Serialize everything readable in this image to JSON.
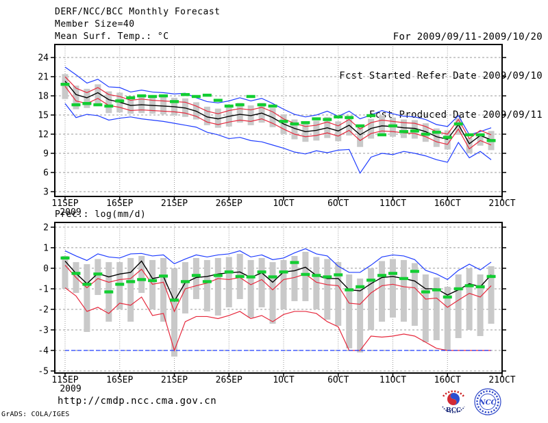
{
  "header": {
    "title": "DERF/NCC/BCC Monthly Forecast",
    "member_size": "Member Size=40",
    "for_range": "For 2009/09/11-2009/10/20",
    "refer_date": "Fcst Started Refer Date 2009/09/10",
    "produced_date": "Fcst Produced Date 2009/09/11"
  },
  "footer": {
    "url": "http://cmdp.ncc.cma.gov.cn",
    "grads_credit": "GrADS: COLA/IGES",
    "logos": [
      {
        "name": "bcc-logo",
        "label": "BCC"
      },
      {
        "name": "ncc-logo",
        "label": "NCC"
      }
    ]
  },
  "colors": {
    "blue": "#1e3cff",
    "red": "#e6283c",
    "green": "#12cd32",
    "black": "#000000",
    "bar": "#c9c9c9",
    "grid": "#999999",
    "frame": "#000000",
    "logo_navy": "#1a2a7a",
    "logo_red": "#cc2222",
    "logo_blue": "#2b45c8"
  },
  "chart_data": [
    {
      "type": "line",
      "var_label": "Mean Surf. Temp.: °C",
      "x_tick_labels": [
        "11SEP",
        "16SEP",
        "21SEP",
        "26SEP",
        "1OCT",
        "6OCT",
        "11OCT",
        "16OCT",
        "21OCT"
      ],
      "x_tick_days": [
        0,
        5,
        10,
        15,
        20,
        25,
        30,
        35,
        40
      ],
      "x_year_label": "2009",
      "y_ticks": [
        24,
        21,
        18,
        15,
        12,
        9,
        6,
        3
      ],
      "ylim": [
        2.25,
        26.04
      ],
      "n_days": 40,
      "grid": true,
      "legend_position": "none",
      "bars": {
        "high": [
          21.4,
          19.6,
          19.1,
          19.8,
          18.7,
          18.5,
          17.9,
          18.1,
          17.9,
          17.8,
          17.7,
          17.6,
          17.0,
          16.3,
          16.0,
          16.4,
          16.9,
          16.5,
          16.9,
          16.1,
          15.1,
          14.3,
          13.9,
          14.1,
          14.7,
          14.0,
          14.9,
          13.5,
          14.4,
          14.9,
          14.6,
          14.3,
          14.2,
          13.7,
          12.9,
          12.6,
          14.5,
          11.4,
          12.1,
          12.5
        ],
        "low": [
          17.5,
          15.9,
          16.1,
          16.4,
          15.3,
          15.4,
          15.2,
          15.3,
          15.2,
          15.1,
          14.9,
          14.7,
          14.3,
          13.4,
          13.0,
          13.2,
          13.8,
          13.4,
          13.8,
          13.1,
          12.0,
          11.2,
          10.8,
          11.0,
          11.4,
          10.9,
          11.8,
          10.0,
          11.3,
          11.7,
          11.6,
          11.4,
          11.3,
          10.8,
          10.0,
          9.6,
          11.9,
          9.0,
          10.2,
          9.5
        ]
      },
      "series": [
        {
          "name": "ensemble-max",
          "color": "blue",
          "style": "line",
          "values": [
            22.5,
            21.3,
            20.0,
            20.6,
            19.4,
            19.3,
            18.6,
            18.9,
            18.6,
            18.5,
            18.3,
            18.4,
            17.7,
            17.1,
            16.9,
            17.2,
            17.7,
            17.2,
            17.6,
            16.8,
            15.9,
            15.1,
            14.7,
            15.0,
            15.6,
            14.8,
            15.6,
            14.4,
            15.0,
            15.7,
            15.2,
            14.8,
            14.7,
            14.3,
            13.5,
            13.2,
            14.9,
            11.9,
            12.4,
            13.0
          ]
        },
        {
          "name": "ensemble-min",
          "color": "blue",
          "style": "line",
          "values": [
            16.8,
            14.6,
            15.1,
            14.9,
            14.2,
            14.5,
            14.7,
            14.4,
            14.2,
            14.0,
            13.7,
            13.4,
            13.1,
            12.3,
            11.9,
            11.3,
            11.5,
            11.0,
            10.8,
            10.3,
            9.8,
            9.2,
            8.9,
            9.4,
            9.1,
            9.5,
            9.6,
            5.9,
            8.4,
            9.0,
            8.8,
            9.3,
            9.0,
            8.6,
            8.0,
            7.6,
            10.7,
            8.3,
            9.3,
            8.0
          ]
        },
        {
          "name": "upper-spread",
          "color": "red",
          "style": "line",
          "values": [
            21.0,
            19.2,
            18.5,
            19.3,
            18.2,
            17.9,
            17.3,
            17.5,
            17.3,
            17.2,
            17.1,
            17.0,
            16.4,
            15.6,
            15.2,
            15.7,
            16.0,
            15.8,
            16.2,
            15.5,
            14.4,
            13.7,
            13.2,
            13.4,
            13.9,
            13.3,
            14.3,
            12.8,
            13.8,
            14.2,
            14.0,
            13.8,
            13.7,
            13.2,
            12.4,
            12.0,
            14.3,
            11.3,
            12.6,
            11.9
          ]
        },
        {
          "name": "lower-spread",
          "color": "red",
          "style": "line",
          "values": [
            19.5,
            17.2,
            16.8,
            17.6,
            16.5,
            16.2,
            15.7,
            15.8,
            15.7,
            15.6,
            15.5,
            15.3,
            14.8,
            13.9,
            13.5,
            13.9,
            14.2,
            14.0,
            14.4,
            13.7,
            12.8,
            12.0,
            11.6,
            11.8,
            12.2,
            11.7,
            12.6,
            11.0,
            12.1,
            12.5,
            12.4,
            12.2,
            12.1,
            11.6,
            10.8,
            10.4,
            12.8,
            9.7,
            11.0,
            10.3
          ]
        },
        {
          "name": "ensemble-mean",
          "color": "black",
          "style": "line",
          "values": [
            20.3,
            18.2,
            17.7,
            18.5,
            17.4,
            17.0,
            16.5,
            16.6,
            16.5,
            16.4,
            16.3,
            16.1,
            15.6,
            14.7,
            14.4,
            14.8,
            15.1,
            14.9,
            15.3,
            14.6,
            13.6,
            12.9,
            12.4,
            12.6,
            13.0,
            12.5,
            13.4,
            11.9,
            12.9,
            13.3,
            13.2,
            13.0,
            12.9,
            12.4,
            11.6,
            11.2,
            13.5,
            10.5,
            11.8,
            11.1
          ]
        },
        {
          "name": "observation",
          "color": "green",
          "style": "markers",
          "values": [
            19.8,
            16.6,
            16.8,
            16.6,
            16.4,
            17.2,
            17.7,
            18.0,
            17.9,
            18.0,
            17.1,
            18.2,
            17.9,
            18.1,
            17.3,
            16.4,
            16.6,
            17.9,
            16.6,
            16.4,
            14.0,
            13.6,
            13.8,
            14.4,
            14.3,
            14.7,
            14.6,
            13.3,
            14.9,
            11.9,
            13.3,
            12.4,
            12.5,
            12.0,
            12.3,
            11.5,
            13.6,
            11.9,
            11.9,
            11.0
          ]
        }
      ]
    },
    {
      "type": "line",
      "var_label": "Prec.: log(mm/d)",
      "x_tick_labels": [
        "11SEP",
        "16SEP",
        "21SEP",
        "26SEP",
        "1OCT",
        "6OCT",
        "11OCT",
        "16OCT",
        "21OCT"
      ],
      "x_tick_days": [
        0,
        5,
        10,
        15,
        20,
        25,
        30,
        35,
        40
      ],
      "x_year_label": "2009",
      "y_ticks": [
        2,
        1,
        0,
        -1,
        -2,
        -3,
        -4,
        -5
      ],
      "ylim": [
        -5.1,
        2.23
      ],
      "n_days": 40,
      "grid": true,
      "legend_position": "none",
      "bars": {
        "high": [
          0.6,
          0.3,
          0.2,
          0.45,
          0.3,
          0.3,
          0.5,
          0.6,
          0.4,
          0.5,
          0.0,
          0.3,
          0.5,
          0.4,
          0.5,
          0.55,
          0.7,
          0.4,
          0.5,
          0.3,
          0.4,
          0.6,
          0.8,
          0.55,
          0.45,
          0.3,
          -0.3,
          -0.5,
          0.0,
          0.35,
          0.45,
          0.4,
          0.25,
          -0.3,
          -0.45,
          -0.9,
          -0.3,
          0.0,
          -0.3,
          0.1
        ],
        "low": [
          -1.0,
          -1.2,
          -3.1,
          -1.3,
          -2.6,
          -2.0,
          -2.6,
          -1.2,
          -2.0,
          -2.6,
          -4.3,
          -2.2,
          -1.5,
          -2.1,
          -2.3,
          -1.9,
          -1.5,
          -2.4,
          -1.9,
          -2.7,
          -2.0,
          -1.6,
          -1.6,
          -2.0,
          -2.5,
          -2.8,
          -3.9,
          -4.1,
          -3.0,
          -2.6,
          -2.4,
          -2.6,
          -2.8,
          -3.6,
          -3.5,
          -4.0,
          -3.4,
          -3.0,
          -3.3,
          -2.7
        ]
      },
      "series": [
        {
          "name": "ensemble-max",
          "color": "blue",
          "style": "line",
          "values": [
            0.85,
            0.6,
            0.38,
            0.7,
            0.55,
            0.5,
            0.7,
            0.72,
            0.6,
            0.65,
            0.22,
            0.45,
            0.65,
            0.55,
            0.65,
            0.7,
            0.85,
            0.55,
            0.65,
            0.42,
            0.5,
            0.75,
            0.95,
            0.7,
            0.6,
            0.1,
            -0.2,
            -0.2,
            0.15,
            0.55,
            0.65,
            0.6,
            0.42,
            -0.1,
            -0.28,
            -0.55,
            -0.1,
            0.2,
            -0.08,
            0.3
          ]
        },
        {
          "name": "lower-spread",
          "color": "red",
          "style": "line",
          "values": [
            -0.95,
            -1.35,
            -2.1,
            -1.9,
            -2.2,
            -1.7,
            -1.8,
            -1.4,
            -2.3,
            -2.2,
            -4.0,
            -2.6,
            -2.35,
            -2.35,
            -2.45,
            -2.3,
            -2.1,
            -2.45,
            -2.3,
            -2.6,
            -2.25,
            -2.1,
            -2.1,
            -2.2,
            -2.6,
            -2.85,
            -4.0,
            -4.0,
            -3.3,
            -3.35,
            -3.3,
            -3.2,
            -3.3,
            -3.6,
            -3.9,
            -4.0,
            -4.0,
            -4.0,
            -4.0,
            -4.0
          ]
        },
        {
          "name": "ensemble-min-floor",
          "color": "blue",
          "style": "line",
          "dash": "6,3",
          "values": [
            -4,
            -4,
            -4,
            -4,
            -4,
            -4,
            -4,
            -4,
            -4,
            -4,
            -4,
            -4,
            -4,
            -4,
            -4,
            -4,
            -4,
            -4,
            -4,
            -4,
            -4,
            -4,
            -4,
            -4,
            -4,
            -4,
            -4,
            -4,
            -4,
            -4,
            -4,
            -4,
            -4,
            -4,
            -4,
            -4,
            -4,
            -4,
            -4,
            -4
          ]
        },
        {
          "name": "upper-spread",
          "color": "red",
          "style": "line",
          "values": [
            0.15,
            -0.45,
            -0.95,
            -0.5,
            -0.68,
            -0.55,
            -0.5,
            -0.05,
            -0.78,
            -0.68,
            -2.1,
            -1.0,
            -0.85,
            -0.72,
            -0.5,
            -0.55,
            -0.45,
            -0.8,
            -0.55,
            -1.05,
            -0.55,
            -0.45,
            -0.28,
            -0.68,
            -0.8,
            -0.85,
            -1.7,
            -1.75,
            -1.2,
            -0.85,
            -0.78,
            -0.9,
            -0.95,
            -1.5,
            -1.45,
            -1.9,
            -1.55,
            -1.22,
            -1.4,
            -0.85
          ]
        },
        {
          "name": "ensemble-mean",
          "color": "black",
          "style": "line",
          "values": [
            0.35,
            -0.25,
            -0.75,
            -0.25,
            -0.42,
            -0.28,
            -0.2,
            0.35,
            -0.5,
            -0.4,
            -1.6,
            -0.7,
            -0.45,
            -0.4,
            -0.28,
            -0.22,
            -0.18,
            -0.45,
            -0.22,
            -0.68,
            -0.18,
            -0.12,
            0.05,
            -0.35,
            -0.5,
            -0.5,
            -1.05,
            -1.1,
            -0.75,
            -0.45,
            -0.4,
            -0.5,
            -0.62,
            -1.0,
            -1.0,
            -1.3,
            -1.05,
            -0.75,
            -0.9,
            -0.32
          ]
        },
        {
          "name": "observation",
          "color": "green",
          "style": "markers",
          "values": [
            0.5,
            -0.25,
            -0.78,
            -0.28,
            -1.15,
            -0.78,
            -0.65,
            -0.55,
            -0.6,
            -0.38,
            -1.55,
            -0.65,
            -0.35,
            -0.65,
            -0.35,
            -0.18,
            -0.4,
            -0.42,
            -0.18,
            -0.42,
            -0.18,
            0.28,
            -0.3,
            -0.35,
            -0.42,
            -0.32,
            -1.05,
            -0.9,
            -0.58,
            -0.35,
            -0.25,
            -0.5,
            -0.15,
            -1.15,
            -1.05,
            -1.4,
            -1.0,
            -0.85,
            -0.9,
            -0.4
          ]
        }
      ]
    }
  ]
}
